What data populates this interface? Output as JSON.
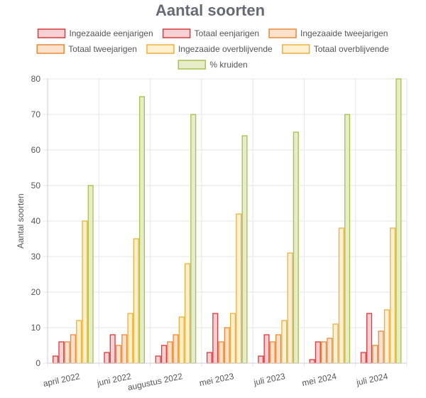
{
  "chart_data": {
    "type": "bar",
    "title": "Aantal soorten",
    "ylabel": "Aantal soorten",
    "xlabel": "",
    "ylim": [
      0,
      80
    ],
    "yticks": [
      0,
      10,
      20,
      30,
      40,
      50,
      60,
      70,
      80
    ],
    "grid": true,
    "legend_position": "top",
    "categories": [
      "april 2022",
      "juni 2022",
      "augustus 2022",
      "mei 2023",
      "juli 2023",
      "mei 2024",
      "juli 2024"
    ],
    "series": [
      {
        "name": "Ingezaaide eenjarigen",
        "values": [
          2,
          3,
          2,
          3,
          2,
          1,
          3
        ],
        "fill": "#f7d0d4",
        "stroke": "#d93a3a"
      },
      {
        "name": "Totaal eenjarigen",
        "values": [
          6,
          8,
          5,
          14,
          8,
          6,
          14
        ],
        "fill": "#f7d0d4",
        "stroke": "#d93a3a"
      },
      {
        "name": "Ingezaaide tweejarigen",
        "values": [
          6,
          5,
          6,
          6,
          6,
          6,
          5
        ],
        "fill": "#fce1cc",
        "stroke": "#e8893a"
      },
      {
        "name": "Totaal tweejarigen",
        "values": [
          8,
          8,
          8,
          10,
          8,
          7,
          9
        ],
        "fill": "#fce1cc",
        "stroke": "#e8893a"
      },
      {
        "name": "Ingezaaide overblijvende",
        "values": [
          12,
          14,
          13,
          14,
          12,
          11,
          15
        ],
        "fill": "#fdf0cf",
        "stroke": "#ebb03c"
      },
      {
        "name": "Totaal overblijvende",
        "values": [
          40,
          35,
          28,
          42,
          31,
          38,
          38
        ],
        "fill": "#fdf0cf",
        "stroke": "#ebb03c"
      },
      {
        "name": "% kruiden",
        "values": [
          50,
          75,
          70,
          64,
          65,
          70,
          80
        ],
        "fill": "#e6edc8",
        "stroke": "#a8c04a"
      }
    ]
  }
}
